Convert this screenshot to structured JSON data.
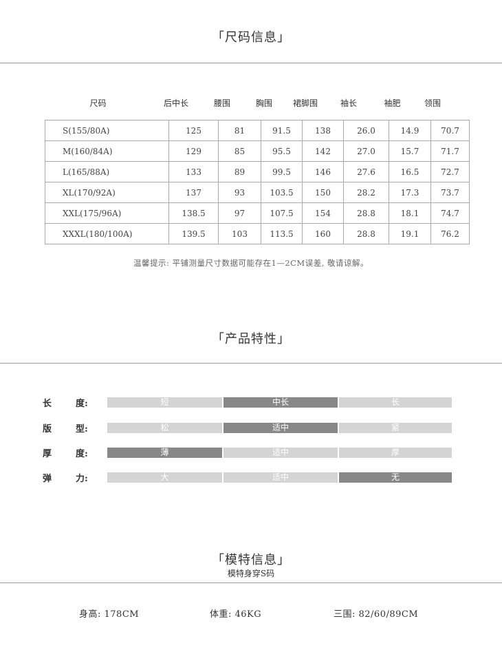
{
  "size_section": {
    "title": "「尺码信息」",
    "headers": [
      "尺码",
      "后中长",
      "腰围",
      "胸围",
      "裙脚围",
      "袖长",
      "袖肥",
      "领围"
    ],
    "rows": [
      [
        "S(155/80A)",
        "125",
        "81",
        "91.5",
        "138",
        "26.0",
        "14.9",
        "70.7"
      ],
      [
        "M(160/84A)",
        "129",
        "85",
        "95.5",
        "142",
        "27.0",
        "15.7",
        "71.7"
      ],
      [
        "L(165/88A)",
        "133",
        "89",
        "99.5",
        "146",
        "27.6",
        "16.5",
        "72.7"
      ],
      [
        "XL(170/92A)",
        "137",
        "93",
        "103.5",
        "150",
        "28.2",
        "17.3",
        "73.7"
      ],
      [
        "XXL(175/96A)",
        "138.5",
        "97",
        "107.5",
        "154",
        "28.8",
        "18.1",
        "74.7"
      ],
      [
        "XXXL(180/100A)",
        "139.5",
        "103",
        "113.5",
        "160",
        "28.8",
        "19.1",
        "76.2"
      ]
    ],
    "note": "温馨提示: 平铺测量尺寸数据可能存在1—2CM误差, 敬请谅解。"
  },
  "features_section": {
    "title": "「产品特性」",
    "colors": {
      "selected": "#888888",
      "unselected": "#d4d4d4"
    },
    "rows": [
      {
        "label_a": "长",
        "label_b": "度:",
        "options": [
          "短",
          "中长",
          "长"
        ],
        "selected": 1
      },
      {
        "label_a": "版",
        "label_b": "型:",
        "options": [
          "松",
          "适中",
          "紧"
        ],
        "selected": 1
      },
      {
        "label_a": "厚",
        "label_b": "度:",
        "options": [
          "薄",
          "适中",
          "厚"
        ],
        "selected": 0
      },
      {
        "label_a": "弹",
        "label_b": "力:",
        "options": [
          "大",
          "适中",
          "无"
        ],
        "selected": 2
      }
    ]
  },
  "model_section": {
    "title": "「模特信息」",
    "subtitle": "模特身穿S码",
    "height": "身高: 178CM",
    "weight": "体重: 46KG",
    "measurements": "三围: 82/60/89CM"
  }
}
